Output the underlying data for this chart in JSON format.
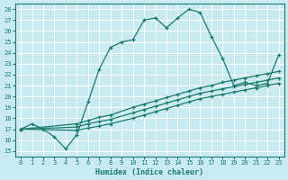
{
  "xlabel": "Humidex (Indice chaleur)",
  "xlim": [
    -0.5,
    23.5
  ],
  "ylim": [
    14.5,
    28.5
  ],
  "xticks": [
    0,
    1,
    2,
    3,
    4,
    5,
    6,
    7,
    8,
    9,
    10,
    11,
    12,
    13,
    14,
    15,
    16,
    17,
    18,
    19,
    20,
    21,
    22,
    23
  ],
  "yticks": [
    15,
    16,
    17,
    18,
    19,
    20,
    21,
    22,
    23,
    24,
    25,
    26,
    27,
    28
  ],
  "line_color": "#1a7a6e",
  "bg_color": "#c8eaf0",
  "grid_color": "#ffffff",
  "series": [
    {
      "x": [
        0,
        1,
        2,
        3,
        4,
        5,
        6,
        7,
        8,
        9,
        10,
        11,
        12,
        13,
        14,
        15,
        16,
        17,
        18,
        19,
        20,
        21,
        22,
        23
      ],
      "y": [
        17.0,
        17.5,
        17.0,
        16.3,
        15.2,
        16.5,
        19.5,
        22.5,
        24.5,
        25.0,
        25.2,
        27.0,
        27.2,
        26.3,
        27.2,
        28.0,
        27.7,
        25.5,
        23.5,
        21.0,
        21.3,
        21.0,
        21.2,
        23.8
      ]
    },
    {
      "x": [
        0,
        5,
        6,
        7,
        8,
        10,
        11,
        12,
        13,
        14,
        15,
        16,
        17,
        18,
        19,
        20,
        21,
        22,
        23
      ],
      "y": [
        17.0,
        17.5,
        17.8,
        18.1,
        18.3,
        19.0,
        19.3,
        19.6,
        19.9,
        20.2,
        20.5,
        20.8,
        21.0,
        21.3,
        21.5,
        21.7,
        21.9,
        22.1,
        22.3
      ]
    },
    {
      "x": [
        0,
        5,
        6,
        7,
        8,
        10,
        11,
        12,
        13,
        14,
        15,
        16,
        17,
        18,
        19,
        20,
        21,
        22,
        23
      ],
      "y": [
        17.0,
        17.2,
        17.5,
        17.7,
        17.9,
        18.5,
        18.8,
        19.1,
        19.4,
        19.7,
        20.0,
        20.3,
        20.5,
        20.7,
        20.9,
        21.1,
        21.3,
        21.5,
        21.7
      ]
    },
    {
      "x": [
        0,
        5,
        6,
        7,
        8,
        10,
        11,
        12,
        13,
        14,
        15,
        16,
        17,
        18,
        19,
        20,
        21,
        22,
        23
      ],
      "y": [
        17.0,
        16.9,
        17.1,
        17.3,
        17.5,
        18.0,
        18.3,
        18.6,
        18.9,
        19.2,
        19.5,
        19.8,
        20.0,
        20.2,
        20.4,
        20.6,
        20.8,
        21.0,
        21.2
      ]
    }
  ]
}
